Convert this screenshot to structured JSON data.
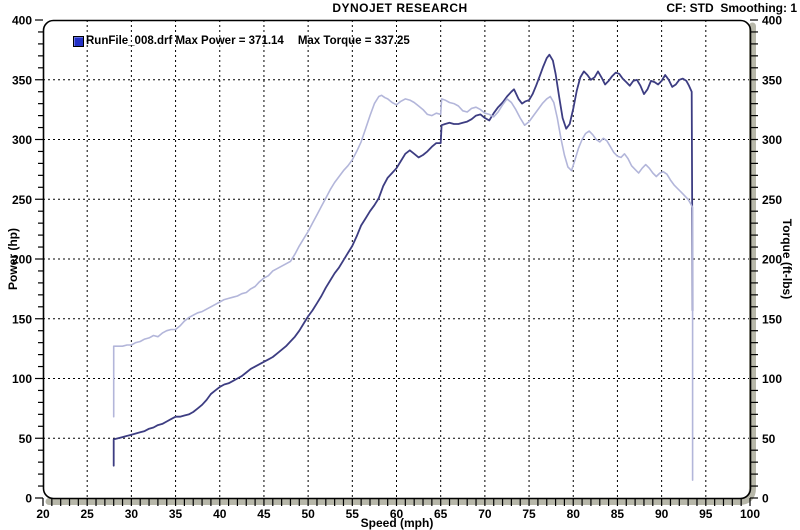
{
  "header": {
    "title": "DYNOJET RESEARCH",
    "cf_label": "CF: STD  Smoothing: 1"
  },
  "legend": {
    "swatch_icon": "runfile-swatch-icon",
    "runfile_text": "RunFile_008.drf Max Power = 371.14",
    "max_torque_text": "Max Torque = 337.25",
    "max_power_value": 371.14,
    "max_torque_value": 337.25
  },
  "colors": {
    "power_line": "#3d3d82",
    "torque_line": "#b3b6da",
    "grid": "#000000",
    "frame": "#000000",
    "frame_shadow": "#b7b7a9",
    "text": "#000000",
    "swatch_blue": "#2330c6"
  },
  "chart_data": {
    "type": "line",
    "title": "DYNOJET RESEARCH",
    "xlabel": "Speed (mph)",
    "ylabel_left": "Power (hp)",
    "ylabel_right": "Torque (ft-lbs)",
    "xlim": [
      20,
      100
    ],
    "ylim": [
      0,
      400
    ],
    "x_major_step": 5,
    "x_minor_step": 1,
    "y_major_step": 50,
    "y_minor_step": 10,
    "grid": "dashed",
    "legend_position": "top-left",
    "series": [
      {
        "name": "Power (hp) RunFile_008.drf",
        "axis": "left",
        "color": "#3d3d82",
        "width": 1.8,
        "points": [
          [
            28,
            27
          ],
          [
            28,
            49
          ],
          [
            28.5,
            50
          ],
          [
            29,
            51
          ],
          [
            29.5,
            52
          ],
          [
            30,
            53
          ],
          [
            30.5,
            54
          ],
          [
            31,
            55
          ],
          [
            31.5,
            56
          ],
          [
            32,
            58
          ],
          [
            32.5,
            59
          ],
          [
            33,
            61
          ],
          [
            33.5,
            62
          ],
          [
            34,
            64
          ],
          [
            34.5,
            66
          ],
          [
            35,
            68
          ],
          [
            35.5,
            68
          ],
          [
            36,
            69
          ],
          [
            36.5,
            70
          ],
          [
            37,
            72
          ],
          [
            37.5,
            75
          ],
          [
            38,
            78
          ],
          [
            38.5,
            82
          ],
          [
            39,
            87
          ],
          [
            39.5,
            90
          ],
          [
            40,
            93
          ],
          [
            40.5,
            95
          ],
          [
            41,
            96
          ],
          [
            41.5,
            98
          ],
          [
            42,
            100
          ],
          [
            42.5,
            102
          ],
          [
            43,
            105
          ],
          [
            43.5,
            108
          ],
          [
            44,
            110
          ],
          [
            44.5,
            112
          ],
          [
            45,
            114
          ],
          [
            45.5,
            116
          ],
          [
            46,
            118
          ],
          [
            46.5,
            121
          ],
          [
            47,
            124
          ],
          [
            47.5,
            127
          ],
          [
            48,
            131
          ],
          [
            48.5,
            135
          ],
          [
            49,
            140
          ],
          [
            49.5,
            146
          ],
          [
            50,
            152
          ],
          [
            50.5,
            157
          ],
          [
            51,
            163
          ],
          [
            51.5,
            169
          ],
          [
            52,
            176
          ],
          [
            52.5,
            182
          ],
          [
            53,
            188
          ],
          [
            53.5,
            193
          ],
          [
            54,
            199
          ],
          [
            54.5,
            205
          ],
          [
            55,
            211
          ],
          [
            55.5,
            219
          ],
          [
            56,
            228
          ],
          [
            56.5,
            234
          ],
          [
            57,
            240
          ],
          [
            57.5,
            245
          ],
          [
            58,
            251
          ],
          [
            58.5,
            261
          ],
          [
            59,
            268
          ],
          [
            59.5,
            272
          ],
          [
            60,
            276
          ],
          [
            60.5,
            282
          ],
          [
            61,
            288
          ],
          [
            61.5,
            291
          ],
          [
            62,
            288
          ],
          [
            62.5,
            285
          ],
          [
            63,
            287
          ],
          [
            63.5,
            290
          ],
          [
            64,
            294
          ],
          [
            64.5,
            297
          ],
          [
            65,
            297
          ],
          [
            65.1,
            312
          ],
          [
            65.5,
            313
          ],
          [
            66,
            314
          ],
          [
            66.5,
            313
          ],
          [
            67,
            313
          ],
          [
            67.5,
            314
          ],
          [
            68,
            315
          ],
          [
            68.5,
            317
          ],
          [
            69,
            320
          ],
          [
            69.5,
            321
          ],
          [
            70,
            318
          ],
          [
            70.5,
            316
          ],
          [
            71,
            322
          ],
          [
            71.5,
            327
          ],
          [
            72,
            331
          ],
          [
            72.5,
            336
          ],
          [
            73,
            340
          ],
          [
            73.3,
            342
          ],
          [
            73.8,
            334
          ],
          [
            74.2,
            330
          ],
          [
            74.6,
            332
          ],
          [
            75,
            333
          ],
          [
            75.4,
            338
          ],
          [
            75.8,
            345
          ],
          [
            76.2,
            353
          ],
          [
            76.6,
            361
          ],
          [
            77,
            368
          ],
          [
            77.3,
            371
          ],
          [
            77.7,
            366
          ],
          [
            78,
            355
          ],
          [
            78.4,
            336
          ],
          [
            78.8,
            318
          ],
          [
            79.2,
            309
          ],
          [
            79.6,
            313
          ],
          [
            80,
            326
          ],
          [
            80.4,
            341
          ],
          [
            80.8,
            352
          ],
          [
            81.2,
            357
          ],
          [
            81.6,
            354
          ],
          [
            82,
            350
          ],
          [
            82.4,
            352
          ],
          [
            82.8,
            357
          ],
          [
            83.2,
            352
          ],
          [
            83.6,
            346
          ],
          [
            84,
            349
          ],
          [
            84.4,
            353
          ],
          [
            84.8,
            356
          ],
          [
            85.2,
            355
          ],
          [
            85.6,
            351
          ],
          [
            86,
            348
          ],
          [
            86.4,
            345
          ],
          [
            86.8,
            349
          ],
          [
            87.2,
            350
          ],
          [
            87.6,
            345
          ],
          [
            88,
            338
          ],
          [
            88.4,
            342
          ],
          [
            88.8,
            349
          ],
          [
            89.2,
            348
          ],
          [
            89.6,
            346
          ],
          [
            90,
            349
          ],
          [
            90.4,
            354
          ],
          [
            90.8,
            350
          ],
          [
            91.2,
            344
          ],
          [
            91.6,
            346
          ],
          [
            92,
            350
          ],
          [
            92.4,
            351
          ],
          [
            92.8,
            349
          ],
          [
            93.1,
            345
          ],
          [
            93.4,
            340
          ],
          [
            93.5,
            157
          ]
        ]
      },
      {
        "name": "Torque (ft-lbs) RunFile_008.drf",
        "axis": "right",
        "color": "#b3b6da",
        "width": 1.6,
        "points": [
          [
            28,
            68
          ],
          [
            28,
            127
          ],
          [
            28.5,
            127
          ],
          [
            29,
            127
          ],
          [
            29.5,
            128
          ],
          [
            30,
            128
          ],
          [
            30.5,
            130
          ],
          [
            31,
            131
          ],
          [
            31.5,
            133
          ],
          [
            32,
            134
          ],
          [
            32.5,
            136
          ],
          [
            33,
            135
          ],
          [
            33.5,
            138
          ],
          [
            34,
            140
          ],
          [
            34.5,
            141
          ],
          [
            35,
            141
          ],
          [
            35.5,
            144
          ],
          [
            36,
            148
          ],
          [
            36.5,
            151
          ],
          [
            37,
            153
          ],
          [
            37.5,
            155
          ],
          [
            38,
            156
          ],
          [
            38.5,
            158
          ],
          [
            39,
            160
          ],
          [
            39.5,
            162
          ],
          [
            40,
            164
          ],
          [
            40.5,
            166
          ],
          [
            41,
            167
          ],
          [
            41.5,
            168
          ],
          [
            42,
            169
          ],
          [
            42.5,
            171
          ],
          [
            43,
            172
          ],
          [
            43.5,
            175
          ],
          [
            44,
            177
          ],
          [
            44.5,
            181
          ],
          [
            45,
            184
          ],
          [
            45.5,
            186
          ],
          [
            46,
            190
          ],
          [
            46.5,
            192
          ],
          [
            47,
            194
          ],
          [
            47.5,
            196
          ],
          [
            48,
            198
          ],
          [
            48.5,
            204
          ],
          [
            49,
            211
          ],
          [
            49.5,
            217
          ],
          [
            50,
            223
          ],
          [
            50.5,
            230
          ],
          [
            51,
            237
          ],
          [
            51.5,
            244
          ],
          [
            52,
            251
          ],
          [
            52.5,
            258
          ],
          [
            53,
            264
          ],
          [
            53.5,
            269
          ],
          [
            54,
            274
          ],
          [
            54.5,
            278
          ],
          [
            55,
            283
          ],
          [
            55.5,
            290
          ],
          [
            56,
            298
          ],
          [
            56.5,
            309
          ],
          [
            57,
            320
          ],
          [
            57.5,
            330
          ],
          [
            58,
            336
          ],
          [
            58.3,
            337
          ],
          [
            58.7,
            335
          ],
          [
            59,
            334
          ],
          [
            59.5,
            331
          ],
          [
            60,
            329
          ],
          [
            60.5,
            332
          ],
          [
            61,
            334
          ],
          [
            61.5,
            333
          ],
          [
            62,
            331
          ],
          [
            62.5,
            328
          ],
          [
            63,
            325
          ],
          [
            63.5,
            321
          ],
          [
            64,
            320
          ],
          [
            64.5,
            322
          ],
          [
            65,
            321
          ],
          [
            65.1,
            334
          ],
          [
            65.5,
            333
          ],
          [
            66,
            331
          ],
          [
            66.5,
            330
          ],
          [
            67,
            328
          ],
          [
            67.5,
            324
          ],
          [
            68,
            323
          ],
          [
            68.5,
            326
          ],
          [
            69,
            327
          ],
          [
            69.5,
            325
          ],
          [
            70,
            322
          ],
          [
            70.5,
            321
          ],
          [
            71,
            319
          ],
          [
            71.5,
            323
          ],
          [
            72,
            329
          ],
          [
            72.5,
            334
          ],
          [
            73,
            331
          ],
          [
            73.5,
            325
          ],
          [
            74,
            318
          ],
          [
            74.5,
            312
          ],
          [
            75,
            315
          ],
          [
            75.5,
            320
          ],
          [
            76,
            325
          ],
          [
            76.5,
            330
          ],
          [
            77,
            334
          ],
          [
            77.4,
            336
          ],
          [
            77.8,
            331
          ],
          [
            78.2,
            318
          ],
          [
            78.6,
            301
          ],
          [
            79,
            287
          ],
          [
            79.4,
            277
          ],
          [
            79.8,
            274
          ],
          [
            80.2,
            283
          ],
          [
            80.6,
            293
          ],
          [
            81,
            300
          ],
          [
            81.4,
            305
          ],
          [
            81.8,
            307
          ],
          [
            82.2,
            304
          ],
          [
            82.6,
            300
          ],
          [
            83,
            298
          ],
          [
            83.4,
            301
          ],
          [
            83.8,
            299
          ],
          [
            84.2,
            294
          ],
          [
            84.6,
            289
          ],
          [
            85,
            286
          ],
          [
            85.4,
            285
          ],
          [
            85.8,
            288
          ],
          [
            86.2,
            284
          ],
          [
            86.6,
            278
          ],
          [
            87,
            275
          ],
          [
            87.4,
            272
          ],
          [
            87.8,
            276
          ],
          [
            88.2,
            279
          ],
          [
            88.6,
            276
          ],
          [
            89,
            272
          ],
          [
            89.4,
            269
          ],
          [
            89.8,
            272
          ],
          [
            90.2,
            273
          ],
          [
            90.6,
            271
          ],
          [
            91,
            266
          ],
          [
            91.4,
            262
          ],
          [
            91.8,
            259
          ],
          [
            92.2,
            256
          ],
          [
            92.6,
            253
          ],
          [
            93,
            250
          ],
          [
            93.3,
            246
          ],
          [
            93.5,
            243
          ],
          [
            93.5,
            15
          ]
        ]
      }
    ]
  }
}
